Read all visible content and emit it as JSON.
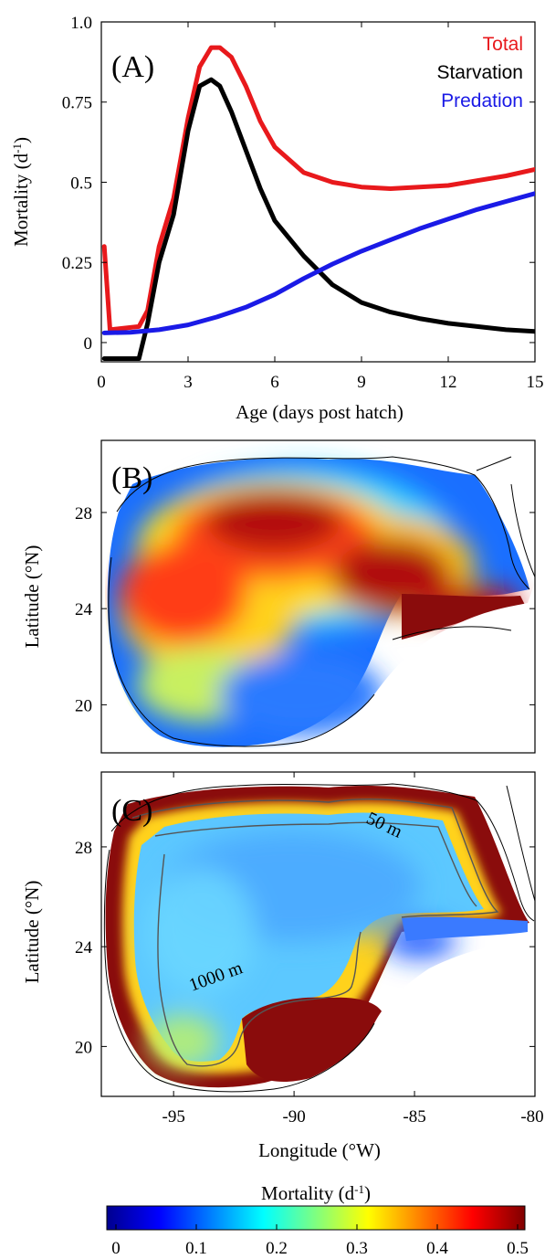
{
  "chart_data": [
    {
      "panel": "(A)",
      "type": "line",
      "xlabel": "Age (days post hatch)",
      "ylabel_main": "Mortality (d",
      "ylabel_sup": "-1",
      "ylabel_end": ")",
      "xlim": [
        0,
        15
      ],
      "ylim": [
        -0.06,
        1.0
      ],
      "xticks": [
        0,
        3,
        6,
        9,
        12,
        15
      ],
      "xtick_labels": [
        "0",
        "3",
        "6",
        "9",
        "12",
        "15"
      ],
      "yticks": [
        0,
        0.25,
        0.5,
        0.75,
        1.0
      ],
      "ytick_labels": [
        "0",
        "0.25",
        "0.5",
        "0.75",
        "1.0"
      ],
      "legend_position": "top-right",
      "series": [
        {
          "name": "Total",
          "color": "#e8191c",
          "x": [
            0.1,
            0.3,
            1.3,
            1.6,
            2.0,
            2.5,
            3.0,
            3.4,
            3.8,
            4.1,
            4.5,
            5.0,
            5.5,
            6.0,
            7.0,
            8.0,
            9.0,
            10.0,
            11.0,
            12.0,
            13.0,
            14.0,
            15.0
          ],
          "y": [
            0.3,
            0.04,
            0.05,
            0.1,
            0.3,
            0.45,
            0.7,
            0.86,
            0.92,
            0.92,
            0.89,
            0.8,
            0.69,
            0.61,
            0.53,
            0.5,
            0.485,
            0.48,
            0.485,
            0.49,
            0.505,
            0.52,
            0.54
          ]
        },
        {
          "name": "Starvation",
          "color": "#000000",
          "x": [
            0.1,
            1.3,
            1.6,
            2.0,
            2.5,
            3.0,
            3.4,
            3.8,
            4.1,
            4.5,
            5.0,
            5.5,
            6.0,
            7.0,
            8.0,
            9.0,
            10.0,
            11.0,
            12.0,
            13.0,
            14.0,
            15.0
          ],
          "y": [
            -0.05,
            -0.05,
            0.06,
            0.25,
            0.4,
            0.66,
            0.8,
            0.82,
            0.8,
            0.72,
            0.6,
            0.48,
            0.38,
            0.27,
            0.18,
            0.125,
            0.095,
            0.075,
            0.06,
            0.05,
            0.04,
            0.035
          ]
        },
        {
          "name": "Predation",
          "color": "#1a1ae6",
          "x": [
            0.1,
            1.0,
            2.0,
            3.0,
            4.0,
            5.0,
            6.0,
            7.0,
            8.0,
            9.0,
            10.0,
            11.0,
            12.0,
            13.0,
            14.0,
            15.0
          ],
          "y": [
            0.03,
            0.032,
            0.04,
            0.055,
            0.08,
            0.11,
            0.15,
            0.2,
            0.245,
            0.285,
            0.32,
            0.355,
            0.385,
            0.415,
            0.44,
            0.465
          ]
        }
      ]
    },
    {
      "panel": "(B)",
      "type": "heatmap",
      "ylabel": "Latitude (°N)",
      "xlim": [
        -98,
        -80
      ],
      "ylim": [
        18,
        31
      ],
      "yticks": [
        20,
        24,
        28
      ],
      "ytick_labels": [
        "20",
        "24",
        "28"
      ],
      "value_range": [
        0,
        0.5
      ],
      "hotspots": [
        {
          "lon": -92,
          "lat": 26.8,
          "value": 0.5,
          "spread": 2.4
        },
        {
          "lon": -95.5,
          "lat": 24.2,
          "value": 0.47,
          "spread": 2.0
        },
        {
          "lon": -86,
          "lat": 25,
          "value": 0.5,
          "spread": 1.9
        },
        {
          "lon": -82,
          "lat": 24.3,
          "value": 0.45,
          "spread": 1.4
        },
        {
          "lon": -90,
          "lat": 21,
          "value": 0.1,
          "spread": 2.2
        }
      ]
    },
    {
      "panel": "(C)",
      "type": "heatmap",
      "ylabel": "Latitude (°N)",
      "xlabel": "Longitude (°W)",
      "xlim": [
        -98,
        -80
      ],
      "ylim": [
        18,
        31
      ],
      "xticks": [
        -95,
        -90,
        -85,
        -80
      ],
      "xtick_labels": [
        "-95",
        "-90",
        "-85",
        "-80"
      ],
      "yticks": [
        20,
        24,
        28
      ],
      "ytick_labels": [
        "20",
        "24",
        "28"
      ],
      "value_range": [
        0,
        0.5
      ],
      "contours": [
        {
          "label": "50 m",
          "label_lon": -86,
          "label_lat": 28.2
        },
        {
          "label": "1000 m",
          "label_lon": -93.8,
          "label_lat": 23.0
        }
      ]
    }
  ],
  "colorbar": {
    "label_main": "Mortality (d",
    "label_sup": "-1",
    "label_end": ")",
    "ticks": [
      0,
      0.1,
      0.2,
      0.3,
      0.4,
      0.5
    ],
    "tick_labels": [
      "0",
      "0.1",
      "0.2",
      "0.3",
      "0.4",
      "0.5"
    ],
    "colormap": "jet"
  }
}
